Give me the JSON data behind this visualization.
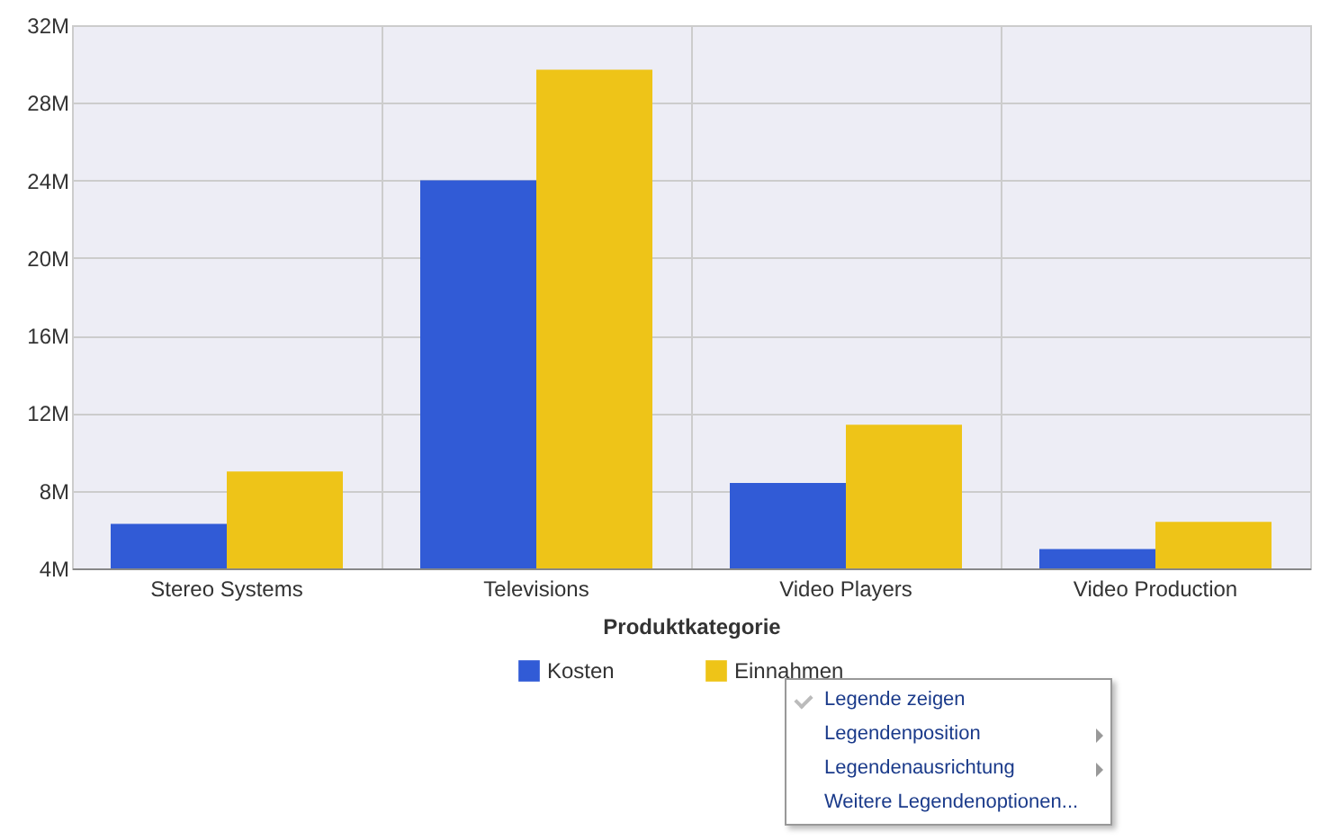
{
  "chart_data": {
    "type": "bar",
    "xlabel": "Produktkategorie",
    "categories": [
      "Stereo Systems",
      "Televisions",
      "Video Players",
      "Video Production"
    ],
    "series": [
      {
        "name": "Kosten",
        "color": "#315bd6",
        "values": [
          6.3,
          24.0,
          8.4,
          5.0
        ]
      },
      {
        "name": "Einnahmen",
        "color": "#eec418",
        "values": [
          9.0,
          29.7,
          11.4,
          6.4
        ]
      }
    ],
    "ylim": [
      4,
      32
    ],
    "yticks": [
      {
        "value": 4,
        "label": "4M"
      },
      {
        "value": 8,
        "label": "8M"
      },
      {
        "value": 12,
        "label": "12M"
      },
      {
        "value": 16,
        "label": "16M"
      },
      {
        "value": 20,
        "label": "20M"
      },
      {
        "value": 24,
        "label": "24M"
      },
      {
        "value": 28,
        "label": "28M"
      },
      {
        "value": 32,
        "label": "32M"
      }
    ],
    "grid": true,
    "legend": "bottom",
    "annotations": [
      "Legende zeigen",
      "Legendenposition",
      "Legendenausrichtung",
      "Weitere Legendenoptionen..."
    ]
  }
}
